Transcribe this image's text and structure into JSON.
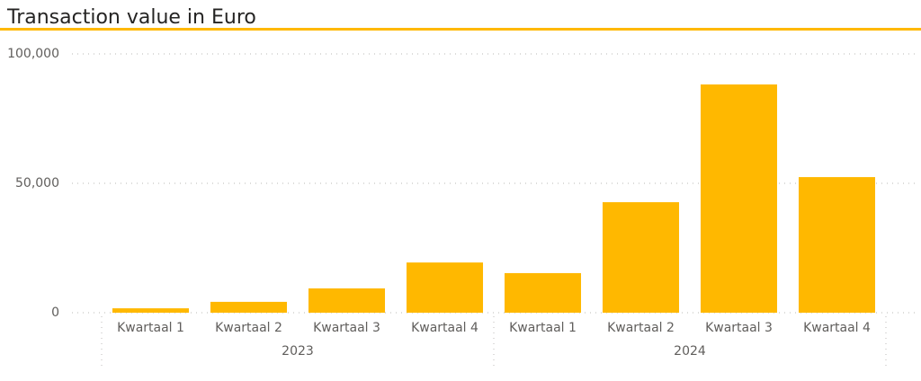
{
  "chart_data": {
    "type": "bar",
    "title": "Transaction value in Euro",
    "categories": [
      "Kwartaal 1",
      "Kwartaal 2",
      "Kwartaal 3",
      "Kwartaal 4",
      "Kwartaal 1",
      "Kwartaal 2",
      "Kwartaal 3",
      "Kwartaal 4"
    ],
    "groups": [
      "2023",
      "2024"
    ],
    "values": [
      1700,
      4200,
      9400,
      19400,
      15300,
      42700,
      88200,
      52400
    ],
    "color": "#ffb800",
    "ylim": [
      0,
      100000
    ],
    "yticks": [
      0,
      {
        "value": 50000,
        "label": "50,000"
      },
      {
        "value": 100000,
        "label": "100,000"
      }
    ],
    "grid": true
  }
}
